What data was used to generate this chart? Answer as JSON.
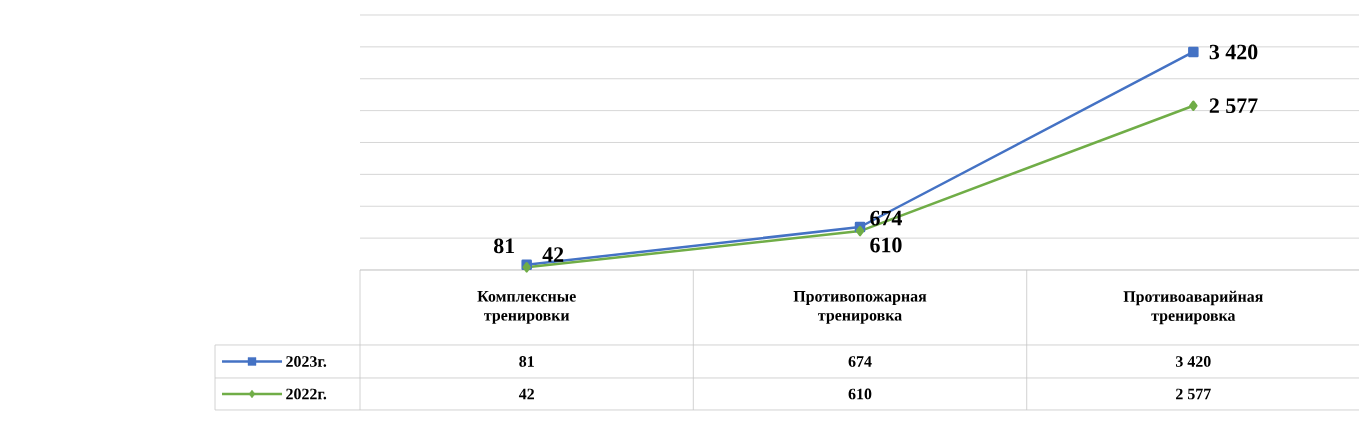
{
  "chart_data": {
    "type": "line",
    "categories": [
      "Комплексные тренировки",
      "Противопожарная тренировка",
      "Противоаварийная тренировка"
    ],
    "series": [
      {
        "name": "2023г.",
        "color": "#4472c4",
        "marker": "square",
        "values": [
          81,
          674,
          3420
        ],
        "value_labels": [
          "81",
          "674",
          "3 420"
        ]
      },
      {
        "name": "2022г.",
        "color": "#70ad47",
        "marker": "diamond",
        "values": [
          42,
          610,
          2577
        ],
        "value_labels": [
          "42",
          "610",
          "2 577"
        ]
      }
    ],
    "ylim": [
      0,
      4000
    ],
    "yticks": [
      {
        "value": 0,
        "label": null
      },
      {
        "value": 500,
        "label": null
      },
      {
        "value": 1000,
        "label": null
      },
      {
        "value": 1500,
        "label": null
      },
      {
        "value": 2000,
        "label": null
      },
      {
        "value": 2500,
        "label": null
      },
      {
        "value": 3000,
        "label": null
      },
      {
        "value": 3500,
        "label": null
      },
      {
        "value": 4000,
        "label": null
      }
    ],
    "grid": "y",
    "legend": "bottom",
    "line_style": "solid"
  }
}
